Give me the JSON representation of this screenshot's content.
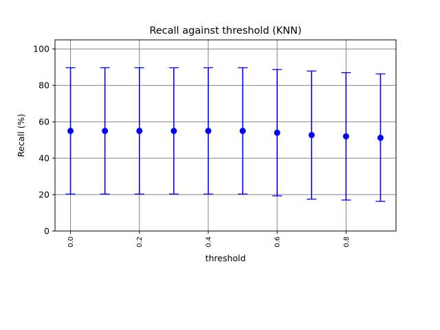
{
  "chart_data": {
    "type": "scatter",
    "title": "Recall against threshold (KNN)",
    "xlabel": "threshold",
    "ylabel": "Recall (%)",
    "xlim": [
      -0.045,
      0.945
    ],
    "ylim": [
      0,
      105
    ],
    "grid": true,
    "x_ticks": [
      "0.0",
      "0.2",
      "0.4",
      "0.6",
      "0.8"
    ],
    "x_tick_values": [
      0.0,
      0.2,
      0.4,
      0.6,
      0.8
    ],
    "y_ticks": [
      "0",
      "20",
      "40",
      "60",
      "80",
      "100"
    ],
    "y_tick_values": [
      0,
      20,
      40,
      60,
      80,
      100
    ],
    "color": "#0000ff",
    "series": [
      {
        "x": [
          0.0,
          0.1,
          0.2,
          0.3,
          0.4,
          0.5,
          0.6,
          0.7,
          0.8,
          0.9
        ],
        "y": [
          55.0,
          55.0,
          55.0,
          55.0,
          55.0,
          55.0,
          54.0,
          52.7,
          52.0,
          51.2
        ],
        "err_low": [
          20.3,
          20.3,
          20.3,
          20.3,
          20.3,
          20.3,
          19.3,
          17.5,
          17.0,
          16.3
        ],
        "err_high": [
          89.7,
          89.7,
          89.7,
          89.7,
          89.7,
          89.7,
          88.7,
          87.9,
          87.0,
          86.3
        ]
      }
    ]
  }
}
